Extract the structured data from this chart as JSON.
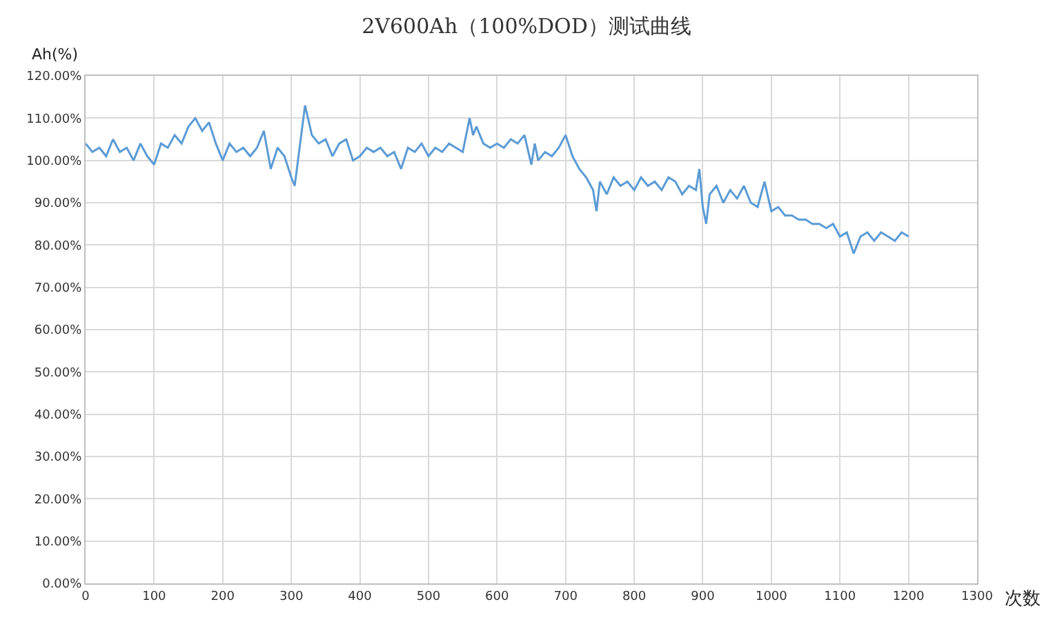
{
  "chart_data": {
    "type": "line",
    "title": "2V600Ah（100%DOD）测试曲线",
    "xlabel": "次数",
    "ylabel": "Ah(%)",
    "x": [
      0,
      10,
      20,
      30,
      40,
      50,
      60,
      70,
      80,
      90,
      100,
      110,
      120,
      130,
      140,
      150,
      160,
      170,
      180,
      190,
      200,
      210,
      220,
      230,
      240,
      250,
      260,
      270,
      280,
      290,
      300,
      305,
      320,
      330,
      340,
      350,
      360,
      370,
      380,
      390,
      400,
      410,
      420,
      430,
      440,
      450,
      460,
      470,
      480,
      490,
      500,
      510,
      520,
      530,
      540,
      550,
      560,
      565,
      570,
      580,
      590,
      600,
      610,
      620,
      630,
      640,
      650,
      655,
      660,
      670,
      680,
      690,
      700,
      710,
      720,
      730,
      740,
      745,
      750,
      760,
      770,
      780,
      790,
      800,
      810,
      820,
      830,
      840,
      850,
      860,
      870,
      880,
      890,
      895,
      900,
      905,
      910,
      920,
      930,
      940,
      950,
      960,
      970,
      980,
      990,
      1000,
      1010,
      1020,
      1030,
      1040,
      1050,
      1060,
      1070,
      1080,
      1090,
      1100,
      1110,
      1120,
      1130,
      1140,
      1150,
      1160,
      1170,
      1180,
      1190,
      1200
    ],
    "series": [
      {
        "color": "#5b9bd5",
        "values": [
          104,
          102,
          103,
          101,
          105,
          102,
          103,
          100,
          104,
          101,
          99,
          104,
          103,
          106,
          104,
          108,
          110,
          107,
          109,
          104,
          100,
          104,
          102,
          103,
          101,
          103,
          107,
          98,
          103,
          101,
          96,
          94,
          113,
          106,
          104,
          105,
          101,
          104,
          105,
          100,
          101,
          103,
          102,
          103,
          101,
          102,
          98,
          103,
          102,
          104,
          101,
          103,
          102,
          104,
          103,
          102,
          110,
          106,
          108,
          104,
          103,
          104,
          103,
          105,
          104,
          106,
          99,
          104,
          100,
          102,
          101,
          103,
          106,
          101,
          98,
          96,
          93,
          88,
          95,
          92,
          96,
          94,
          95,
          93,
          96,
          94,
          95,
          93,
          96,
          95,
          92,
          94,
          93,
          98,
          89,
          85,
          92,
          94,
          90,
          93,
          91,
          94,
          90,
          89,
          95,
          88,
          89,
          87,
          87,
          86,
          86,
          85,
          85,
          84,
          85,
          82,
          83,
          78,
          82,
          83,
          81,
          83,
          82,
          81,
          83,
          82
        ]
      }
    ],
    "xlim": [
      0,
      1300
    ],
    "xticks": [
      0,
      100,
      200,
      300,
      400,
      500,
      600,
      700,
      800,
      900,
      1000,
      1100,
      1200,
      1300
    ],
    "ylim": [
      0,
      120
    ],
    "yticks": [
      {
        "value": 0,
        "label": "0.00%"
      },
      {
        "value": 10,
        "label": "10.00%"
      },
      {
        "value": 20,
        "label": "20.00%"
      },
      {
        "value": 30,
        "label": "30.00%"
      },
      {
        "value": 40,
        "label": "40.00%"
      },
      {
        "value": 50,
        "label": "50.00%"
      },
      {
        "value": 60,
        "label": "60.00%"
      },
      {
        "value": 70,
        "label": "70.00%"
      },
      {
        "value": 80,
        "label": "80.00%"
      },
      {
        "value": 90,
        "label": "90.00%"
      },
      {
        "value": 100,
        "label": "100.00%"
      },
      {
        "value": 110,
        "label": "110.00%"
      },
      {
        "value": 120,
        "label": "120.00%"
      }
    ],
    "grid": true,
    "marker": "none",
    "line_style": "solid"
  }
}
